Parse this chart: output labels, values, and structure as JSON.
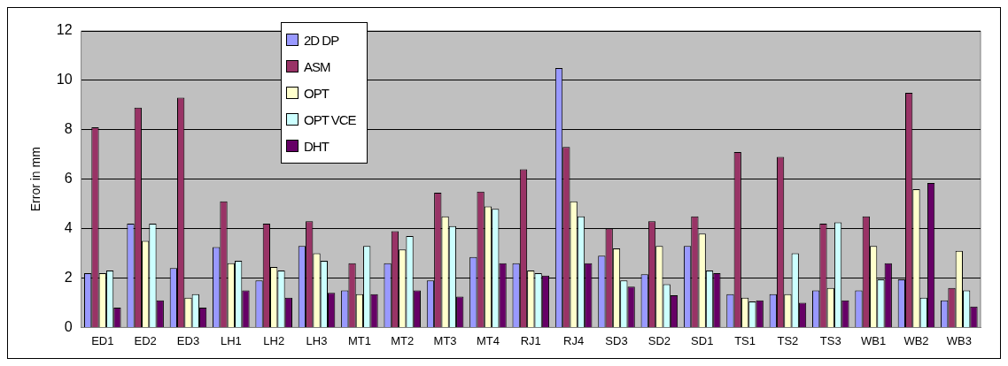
{
  "chart_data": {
    "type": "bar",
    "ylabel": "Error in mm",
    "categories": [
      "ED1",
      "ED2",
      "ED3",
      "LH1",
      "LH2",
      "LH3",
      "MT1",
      "MT2",
      "MT3",
      "MT4",
      "RJ1",
      "RJ4",
      "SD3",
      "SD2",
      "SD1",
      "TS1",
      "TS2",
      "TS3",
      "WB1",
      "WB2",
      "WB3"
    ],
    "series": [
      {
        "name": "2D DP",
        "color": "#9999ff",
        "values": [
          2.2,
          4.2,
          2.4,
          3.25,
          1.9,
          3.3,
          1.5,
          2.6,
          1.9,
          2.85,
          2.6,
          10.5,
          2.9,
          2.15,
          3.3,
          1.35,
          1.35,
          1.5,
          1.5,
          1.95,
          1.1
        ]
      },
      {
        "name": "ASM",
        "color": "#993366",
        "values": [
          8.1,
          8.9,
          9.3,
          5.1,
          4.2,
          4.3,
          2.6,
          3.9,
          5.45,
          5.5,
          6.4,
          7.3,
          4.0,
          4.3,
          4.5,
          7.1,
          6.9,
          4.2,
          4.5,
          9.5,
          1.6
        ]
      },
      {
        "name": "OPT",
        "color": "#ffffcc",
        "values": [
          2.2,
          3.5,
          1.2,
          2.6,
          2.45,
          3.0,
          1.35,
          3.15,
          4.5,
          4.9,
          2.3,
          5.1,
          3.2,
          3.3,
          3.8,
          1.2,
          1.35,
          1.6,
          3.3,
          5.6,
          3.1
        ]
      },
      {
        "name": "OPT VCE",
        "color": "#ccffff",
        "values": [
          2.3,
          4.2,
          1.35,
          2.7,
          2.3,
          2.7,
          3.3,
          3.7,
          4.1,
          4.8,
          2.2,
          4.5,
          1.9,
          1.75,
          2.3,
          1.05,
          3.0,
          4.25,
          1.95,
          1.2,
          1.5
        ]
      },
      {
        "name": "DHT",
        "color": "#660066",
        "values": [
          0.8,
          1.1,
          0.8,
          1.5,
          1.2,
          1.4,
          1.35,
          1.5,
          1.25,
          2.6,
          2.1,
          2.6,
          1.65,
          1.3,
          2.2,
          1.1,
          1.0,
          1.1,
          2.6,
          5.85,
          0.85
        ]
      }
    ],
    "ylim": [
      0,
      12
    ],
    "yticks": [
      0,
      2,
      4,
      6,
      8,
      10,
      12
    ],
    "grid": "y",
    "legend": "top left"
  }
}
